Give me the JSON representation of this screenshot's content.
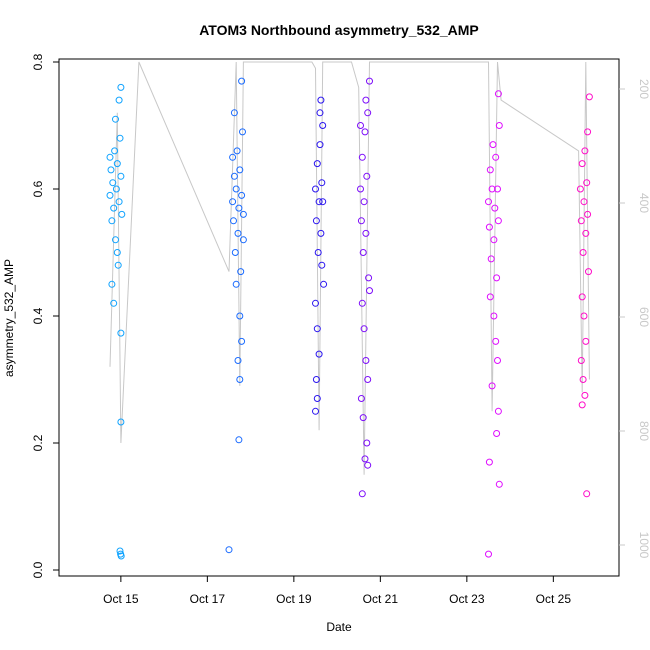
{
  "chart_data": {
    "type": "scatter",
    "title": "ATOM3 Northbound asymmetry_532_AMP",
    "xlabel": "Date",
    "ylabel": "asymmetry_532_AMP",
    "xlim": [
      "2016-10-13T17:00",
      "2016-10-26T08:00"
    ],
    "ylim": [
      0.0,
      0.8
    ],
    "x_ticks": [
      {
        "date": "2016-10-15",
        "label": "Oct 15"
      },
      {
        "date": "2016-10-17",
        "label": "Oct 17"
      },
      {
        "date": "2016-10-19",
        "label": "Oct 19"
      },
      {
        "date": "2016-10-21",
        "label": "Oct 21"
      },
      {
        "date": "2016-10-23",
        "label": "Oct 23"
      },
      {
        "date": "2016-10-25",
        "label": "Oct 25"
      }
    ],
    "y_ticks": [
      0.0,
      0.2,
      0.4,
      0.6,
      0.8
    ],
    "y_tick_labels": [
      "0.0",
      "0.2",
      "0.4",
      "0.6",
      "0.8"
    ],
    "y2_axis": {
      "reversed": true,
      "ticks": [
        200,
        400,
        600,
        800,
        1000
      ],
      "tick_labels": [
        "200",
        "400",
        "600",
        "800",
        "1000"
      ],
      "color": "#c8c8c8"
    },
    "line_color": "#c8c8c8",
    "grid": false,
    "series": [
      {
        "color": "#0fa3ff",
        "points": [
          {
            "x": "2016-10-14T18:00",
            "y": 0.59
          },
          {
            "x": "2016-10-14T18:30",
            "y": 0.63
          },
          {
            "x": "2016-10-14T19:00",
            "y": 0.55
          },
          {
            "x": "2016-10-14T19:30",
            "y": 0.61
          },
          {
            "x": "2016-10-14T20:00",
            "y": 0.57
          },
          {
            "x": "2016-10-14T20:30",
            "y": 0.66
          },
          {
            "x": "2016-10-14T21:00",
            "y": 0.52
          },
          {
            "x": "2016-10-14T21:30",
            "y": 0.6
          },
          {
            "x": "2016-10-14T22:00",
            "y": 0.64
          },
          {
            "x": "2016-10-14T22:30",
            "y": 0.48
          },
          {
            "x": "2016-10-14T23:00",
            "y": 0.58
          },
          {
            "x": "2016-10-14T23:30",
            "y": 0.68
          },
          {
            "x": "2016-10-15T00:00",
            "y": 0.62
          },
          {
            "x": "2016-10-15T00:30",
            "y": 0.56
          },
          {
            "x": "2016-10-14T19:00",
            "y": 0.45
          },
          {
            "x": "2016-10-14T20:00",
            "y": 0.42
          },
          {
            "x": "2016-10-14T21:00",
            "y": 0.71
          },
          {
            "x": "2016-10-14T23:00",
            "y": 0.74
          },
          {
            "x": "2016-10-15T00:00",
            "y": 0.76
          },
          {
            "x": "2016-10-15T00:00",
            "y": 0.373
          },
          {
            "x": "2016-10-15T00:00",
            "y": 0.233
          },
          {
            "x": "2016-10-14T23:30",
            "y": 0.03
          },
          {
            "x": "2016-10-14T23:50",
            "y": 0.025
          },
          {
            "x": "2016-10-15T00:10",
            "y": 0.022
          },
          {
            "x": "2016-10-14T22:00",
            "y": 0.5
          },
          {
            "x": "2016-10-14T18:00",
            "y": 0.65
          }
        ]
      },
      {
        "color": "#1a6bff",
        "points": [
          {
            "x": "2016-10-17T14:00",
            "y": 0.58
          },
          {
            "x": "2016-10-17T14:30",
            "y": 0.55
          },
          {
            "x": "2016-10-17T15:00",
            "y": 0.62
          },
          {
            "x": "2016-10-17T15:30",
            "y": 0.5
          },
          {
            "x": "2016-10-17T16:00",
            "y": 0.6
          },
          {
            "x": "2016-10-17T16:30",
            "y": 0.66
          },
          {
            "x": "2016-10-17T17:00",
            "y": 0.53
          },
          {
            "x": "2016-10-17T17:30",
            "y": 0.57
          },
          {
            "x": "2016-10-17T18:00",
            "y": 0.63
          },
          {
            "x": "2016-10-17T18:30",
            "y": 0.47
          },
          {
            "x": "2016-10-17T19:00",
            "y": 0.59
          },
          {
            "x": "2016-10-17T19:30",
            "y": 0.69
          },
          {
            "x": "2016-10-17T20:00",
            "y": 0.56
          },
          {
            "x": "2016-10-17T15:00",
            "y": 0.72
          },
          {
            "x": "2016-10-17T19:00",
            "y": 0.77
          },
          {
            "x": "2016-10-17T16:00",
            "y": 0.45
          },
          {
            "x": "2016-10-17T18:00",
            "y": 0.4
          },
          {
            "x": "2016-10-17T19:00",
            "y": 0.36
          },
          {
            "x": "2016-10-17T17:00",
            "y": 0.33
          },
          {
            "x": "2016-10-17T18:00",
            "y": 0.3
          },
          {
            "x": "2016-10-17T17:30",
            "y": 0.205
          },
          {
            "x": "2016-10-17T12:00",
            "y": 0.032
          },
          {
            "x": "2016-10-17T14:00",
            "y": 0.65
          },
          {
            "x": "2016-10-17T20:00",
            "y": 0.52
          }
        ]
      },
      {
        "color": "#2b16f0",
        "points": [
          {
            "x": "2016-10-19T12:00",
            "y": 0.6
          },
          {
            "x": "2016-10-19T12:30",
            "y": 0.55
          },
          {
            "x": "2016-10-19T13:00",
            "y": 0.64
          },
          {
            "x": "2016-10-19T13:30",
            "y": 0.5
          },
          {
            "x": "2016-10-19T14:00",
            "y": 0.58
          },
          {
            "x": "2016-10-19T14:30",
            "y": 0.67
          },
          {
            "x": "2016-10-19T15:00",
            "y": 0.53
          },
          {
            "x": "2016-10-19T15:30",
            "y": 0.61
          },
          {
            "x": "2016-10-19T16:00",
            "y": 0.7
          },
          {
            "x": "2016-10-19T16:30",
            "y": 0.45
          },
          {
            "x": "2016-10-19T12:00",
            "y": 0.42
          },
          {
            "x": "2016-10-19T13:00",
            "y": 0.38
          },
          {
            "x": "2016-10-19T14:00",
            "y": 0.34
          },
          {
            "x": "2016-10-19T12:30",
            "y": 0.3
          },
          {
            "x": "2016-10-19T15:00",
            "y": 0.74
          },
          {
            "x": "2016-10-19T13:00",
            "y": 0.27
          },
          {
            "x": "2016-10-19T12:00",
            "y": 0.25
          },
          {
            "x": "2016-10-19T16:00",
            "y": 0.58
          },
          {
            "x": "2016-10-19T14:30",
            "y": 0.72
          },
          {
            "x": "2016-10-19T15:30",
            "y": 0.48
          }
        ]
      },
      {
        "color": "#7d0dfa",
        "points": [
          {
            "x": "2016-10-20T13:00",
            "y": 0.6
          },
          {
            "x": "2016-10-20T13:30",
            "y": 0.55
          },
          {
            "x": "2016-10-20T14:00",
            "y": 0.65
          },
          {
            "x": "2016-10-20T14:30",
            "y": 0.5
          },
          {
            "x": "2016-10-20T15:00",
            "y": 0.58
          },
          {
            "x": "2016-10-20T15:30",
            "y": 0.69
          },
          {
            "x": "2016-10-20T16:00",
            "y": 0.53
          },
          {
            "x": "2016-10-20T16:30",
            "y": 0.62
          },
          {
            "x": "2016-10-20T17:00",
            "y": 0.72
          },
          {
            "x": "2016-10-20T17:30",
            "y": 0.46
          },
          {
            "x": "2016-10-20T18:00",
            "y": 0.77
          },
          {
            "x": "2016-10-20T14:00",
            "y": 0.42
          },
          {
            "x": "2016-10-20T15:00",
            "y": 0.38
          },
          {
            "x": "2016-10-20T16:00",
            "y": 0.33
          },
          {
            "x": "2016-10-20T17:00",
            "y": 0.3
          },
          {
            "x": "2016-10-20T13:30",
            "y": 0.27
          },
          {
            "x": "2016-10-20T14:30",
            "y": 0.24
          },
          {
            "x": "2016-10-20T16:30",
            "y": 0.2
          },
          {
            "x": "2016-10-20T15:30",
            "y": 0.175
          },
          {
            "x": "2016-10-20T17:00",
            "y": 0.165
          },
          {
            "x": "2016-10-20T14:00",
            "y": 0.12
          },
          {
            "x": "2016-10-20T18:00",
            "y": 0.44
          },
          {
            "x": "2016-10-20T13:00",
            "y": 0.7
          },
          {
            "x": "2016-10-20T16:00",
            "y": 0.74
          }
        ]
      },
      {
        "color": "#df0dff",
        "points": [
          {
            "x": "2016-10-23T12:00",
            "y": 0.58
          },
          {
            "x": "2016-10-23T12:30",
            "y": 0.54
          },
          {
            "x": "2016-10-23T13:00",
            "y": 0.63
          },
          {
            "x": "2016-10-23T13:30",
            "y": 0.49
          },
          {
            "x": "2016-10-23T14:00",
            "y": 0.6
          },
          {
            "x": "2016-10-23T14:30",
            "y": 0.67
          },
          {
            "x": "2016-10-23T15:00",
            "y": 0.52
          },
          {
            "x": "2016-10-23T15:30",
            "y": 0.57
          },
          {
            "x": "2016-10-23T16:00",
            "y": 0.65
          },
          {
            "x": "2016-10-23T16:30",
            "y": 0.46
          },
          {
            "x": "2016-10-23T17:00",
            "y": 0.6
          },
          {
            "x": "2016-10-23T17:30",
            "y": 0.55
          },
          {
            "x": "2016-10-23T18:00",
            "y": 0.7
          },
          {
            "x": "2016-10-23T13:00",
            "y": 0.43
          },
          {
            "x": "2016-10-23T15:00",
            "y": 0.4
          },
          {
            "x": "2016-10-23T16:00",
            "y": 0.36
          },
          {
            "x": "2016-10-23T17:00",
            "y": 0.33
          },
          {
            "x": "2016-10-23T14:00",
            "y": 0.29
          },
          {
            "x": "2016-10-23T17:30",
            "y": 0.25
          },
          {
            "x": "2016-10-23T16:30",
            "y": 0.215
          },
          {
            "x": "2016-10-23T12:30",
            "y": 0.17
          },
          {
            "x": "2016-10-23T18:00",
            "y": 0.135
          },
          {
            "x": "2016-10-23T12:00",
            "y": 0.025
          },
          {
            "x": "2016-10-23T17:30",
            "y": 0.75
          }
        ]
      },
      {
        "color": "#ff0dc8",
        "points": [
          {
            "x": "2016-10-25T15:00",
            "y": 0.6
          },
          {
            "x": "2016-10-25T15:30",
            "y": 0.55
          },
          {
            "x": "2016-10-25T16:00",
            "y": 0.64
          },
          {
            "x": "2016-10-25T16:30",
            "y": 0.5
          },
          {
            "x": "2016-10-25T17:00",
            "y": 0.58
          },
          {
            "x": "2016-10-25T17:30",
            "y": 0.66
          },
          {
            "x": "2016-10-25T18:00",
            "y": 0.53
          },
          {
            "x": "2016-10-25T18:30",
            "y": 0.61
          },
          {
            "x": "2016-10-25T19:00",
            "y": 0.69
          },
          {
            "x": "2016-10-25T19:30",
            "y": 0.47
          },
          {
            "x": "2016-10-25T16:00",
            "y": 0.43
          },
          {
            "x": "2016-10-25T17:00",
            "y": 0.4
          },
          {
            "x": "2016-10-25T18:00",
            "y": 0.36
          },
          {
            "x": "2016-10-25T15:30",
            "y": 0.33
          },
          {
            "x": "2016-10-25T16:30",
            "y": 0.3
          },
          {
            "x": "2016-10-25T17:30",
            "y": 0.275
          },
          {
            "x": "2016-10-25T16:00",
            "y": 0.26
          },
          {
            "x": "2016-10-25T20:00",
            "y": 0.745
          },
          {
            "x": "2016-10-25T18:30",
            "y": 0.12
          },
          {
            "x": "2016-10-25T19:00",
            "y": 0.56
          }
        ]
      }
    ],
    "profile_lines": [
      {
        "points": [
          {
            "x": "2016-10-14T18:00",
            "y": 0.32
          },
          {
            "x": "2016-10-14T22:00",
            "y": 0.72
          },
          {
            "x": "2016-10-15T00:00",
            "y": 0.2
          },
          {
            "x": "2016-10-15T10:00",
            "y": 0.8
          },
          {
            "x": "2016-10-17T12:00",
            "y": 0.47
          },
          {
            "x": "2016-10-17T16:00",
            "y": 0.8
          },
          {
            "x": "2016-10-17T18:00",
            "y": 0.29
          },
          {
            "x": "2016-10-17T20:00",
            "y": 0.8
          },
          {
            "x": "2016-10-19T10:00",
            "y": 0.8
          },
          {
            "x": "2016-10-19T12:00",
            "y": 0.79
          },
          {
            "x": "2016-10-19T14:00",
            "y": 0.22
          },
          {
            "x": "2016-10-19T16:00",
            "y": 0.8
          },
          {
            "x": "2016-10-20T08:00",
            "y": 0.8
          },
          {
            "x": "2016-10-20T12:00",
            "y": 0.76
          },
          {
            "x": "2016-10-20T15:00",
            "y": 0.15
          },
          {
            "x": "2016-10-20T18:00",
            "y": 0.8
          },
          {
            "x": "2016-10-23T12:00",
            "y": 0.8
          },
          {
            "x": "2016-10-23T14:00",
            "y": 0.25
          },
          {
            "x": "2016-10-23T17:00",
            "y": 0.8
          },
          {
            "x": "2016-10-23T19:00",
            "y": 0.74
          },
          {
            "x": "2016-10-25T14:00",
            "y": 0.66
          },
          {
            "x": "2016-10-25T16:00",
            "y": 0.28
          },
          {
            "x": "2016-10-25T18:00",
            "y": 0.8
          },
          {
            "x": "2016-10-25T20:00",
            "y": 0.3
          }
        ]
      }
    ]
  }
}
